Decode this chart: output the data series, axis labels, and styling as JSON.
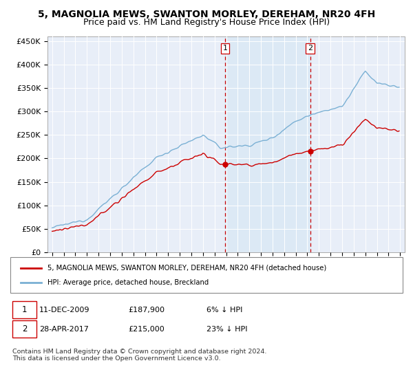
{
  "title": "5, MAGNOLIA MEWS, SWANTON MORLEY, DEREHAM, NR20 4FH",
  "subtitle": "Price paid vs. HM Land Registry's House Price Index (HPI)",
  "title_fontsize": 10,
  "subtitle_fontsize": 9,
  "ylabel_ticks": [
    "£0",
    "£50K",
    "£100K",
    "£150K",
    "£200K",
    "£250K",
    "£300K",
    "£350K",
    "£400K",
    "£450K"
  ],
  "ytick_values": [
    0,
    50000,
    100000,
    150000,
    200000,
    250000,
    300000,
    350000,
    400000,
    450000
  ],
  "ylim": [
    0,
    460000
  ],
  "background_color": "#ffffff",
  "plot_bg_color": "#e8eef8",
  "grid_color": "#ffffff",
  "hpi_color": "#7ab0d4",
  "price_color": "#cc0000",
  "sale1_date": "11-DEC-2009",
  "sale1_price": 187900,
  "sale2_date": "28-APR-2017",
  "sale2_price": 215000,
  "sale1_pct": "6% ↓ HPI",
  "sale2_pct": "23% ↓ HPI",
  "legend_line1": "5, MAGNOLIA MEWS, SWANTON MORLEY, DEREHAM, NR20 4FH (detached house)",
  "legend_line2": "HPI: Average price, detached house, Breckland",
  "footnote": "Contains HM Land Registry data © Crown copyright and database right 2024.\nThis data is licensed under the Open Government Licence v3.0.",
  "vline_color": "#cc0000",
  "shade_color": "#d8e8f4"
}
